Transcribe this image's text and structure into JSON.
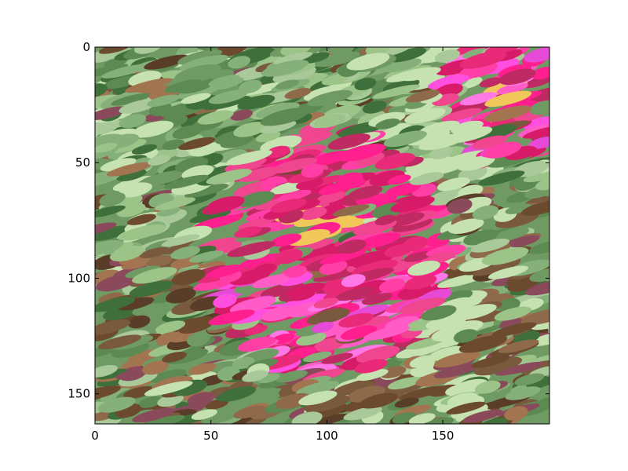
{
  "chart_data": {
    "type": "heatmap",
    "title": "",
    "xlabel": "",
    "ylabel": "",
    "xlim": [
      0,
      196
    ],
    "ylim": [
      163,
      0
    ],
    "y_axis_inverted": true,
    "grid": false,
    "legend": "none",
    "x_ticks": [
      "0",
      "50",
      "100",
      "150"
    ],
    "y_ticks": [
      "0",
      "50",
      "100",
      "150"
    ],
    "x_tick_values": [
      0,
      50,
      100,
      150
    ],
    "y_tick_values": [
      0,
      50,
      100,
      150
    ],
    "image_content": "painterly brush-stroke image of a magenta-pink flower with a yellow center on a green and brown foliage background, a second pink flower in the upper-right corner",
    "colors": {
      "background_green": "#6f9a64",
      "light_green": "#9cc488",
      "dark_green": "#3f6f3a",
      "brown": "#7a5a3e",
      "flower_magenta": "#ff1f8e",
      "flower_pink": "#e82a78",
      "flower_violet": "#ff4fe0",
      "flower_center_yellow": "#f2c75a",
      "mauve": "#8b4a5c",
      "pale_green": "#c6e2b0"
    }
  }
}
